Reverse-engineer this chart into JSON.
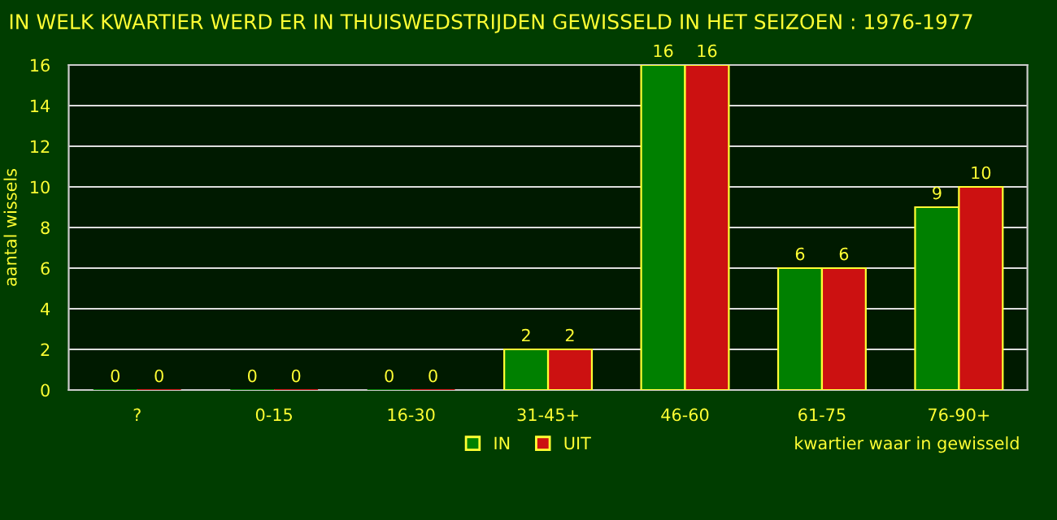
{
  "chart_data": {
    "type": "bar",
    "title": "IN WELK KWARTIER WERD ER IN THUISWEDSTRIJDEN GEWISSELD IN HET SEIZOEN : 1976-1977",
    "xlabel": "kwartier waar in gewisseld",
    "ylabel": "aantal wissels",
    "categories": [
      "?",
      "0-15",
      "16-30",
      "31-45+",
      "46-60",
      "61-75",
      "76-90+"
    ],
    "series": [
      {
        "name": "IN",
        "color": "#008000",
        "values": [
          0,
          0,
          0,
          2,
          16,
          6,
          9
        ]
      },
      {
        "name": "UIT",
        "color": "#cc1111",
        "values": [
          0,
          0,
          0,
          2,
          16,
          6,
          10
        ]
      }
    ],
    "ylim": [
      0,
      16
    ],
    "yticks": [
      0,
      2,
      4,
      6,
      8,
      10,
      12,
      14,
      16
    ],
    "grid": "y",
    "legend": "bottom",
    "data_labels": true
  }
}
